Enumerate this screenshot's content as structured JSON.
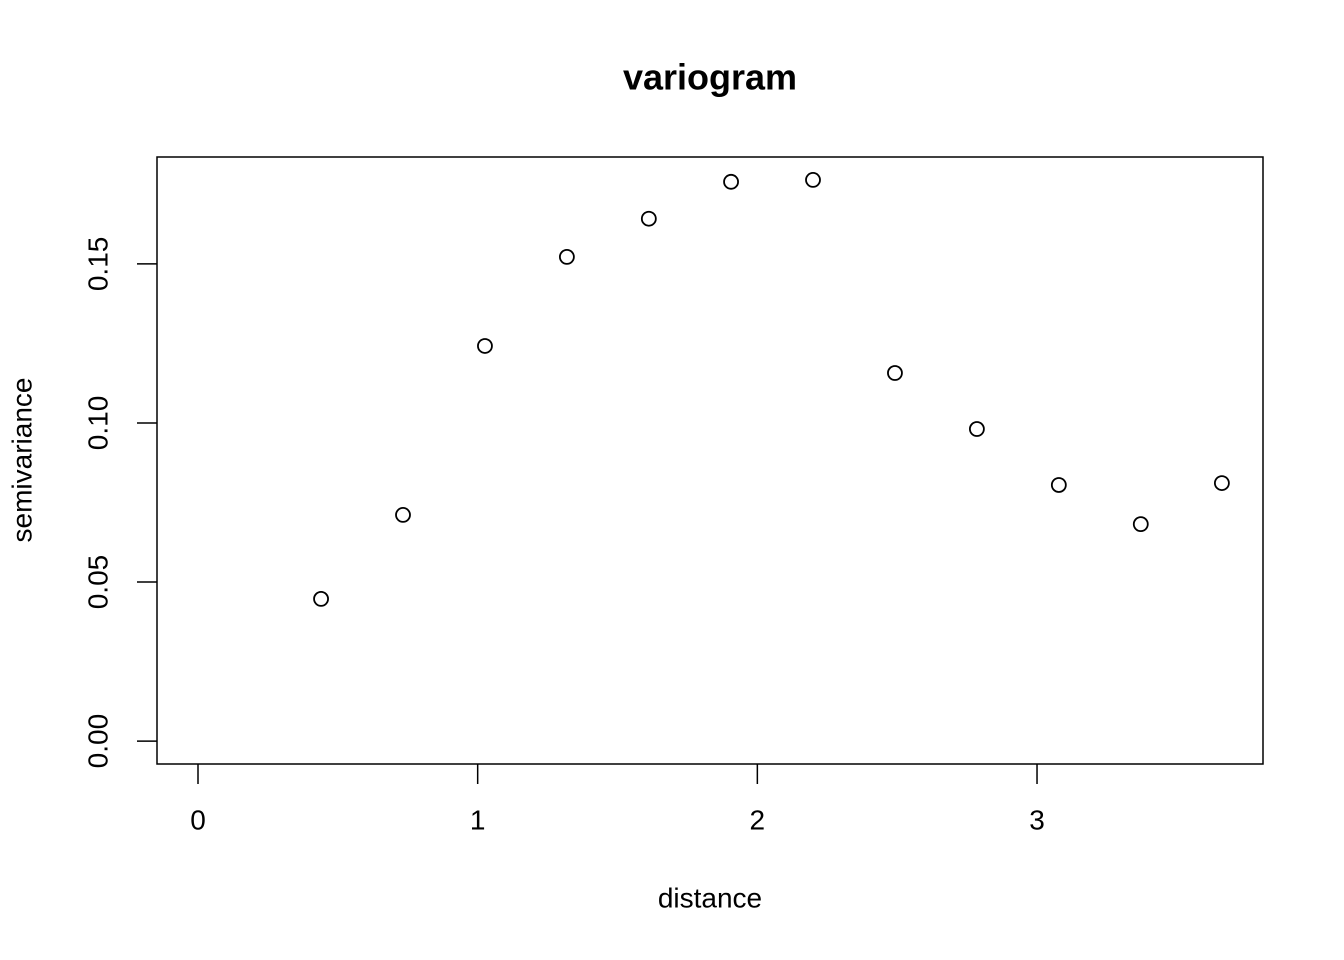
{
  "chart_data": {
    "type": "scatter",
    "title": "variogram",
    "x_label": "distance",
    "y_label": "semivariance",
    "x": [
      0.44,
      0.733,
      1.026,
      1.319,
      1.612,
      1.906,
      2.199,
      2.492,
      2.785,
      3.078,
      3.371,
      3.661
    ],
    "values": [
      0.0447,
      0.0711,
      0.1242,
      0.1522,
      0.1642,
      0.1758,
      0.1764,
      0.1157,
      0.0981,
      0.0805,
      0.0682,
      0.0811
    ],
    "color": "#000000",
    "xlim": [
      -0.1466,
      3.808
    ],
    "ylim": [
      -0.0072,
      0.1836
    ],
    "xticks": [
      0,
      1,
      2,
      3
    ],
    "yticks": [
      {
        "value": 0,
        "label": "0.00"
      },
      {
        "value": 0.05,
        "label": "0.05"
      },
      {
        "value": 0.1,
        "label": "0.10"
      },
      {
        "value": 0.15,
        "label": "0.15"
      }
    ]
  }
}
